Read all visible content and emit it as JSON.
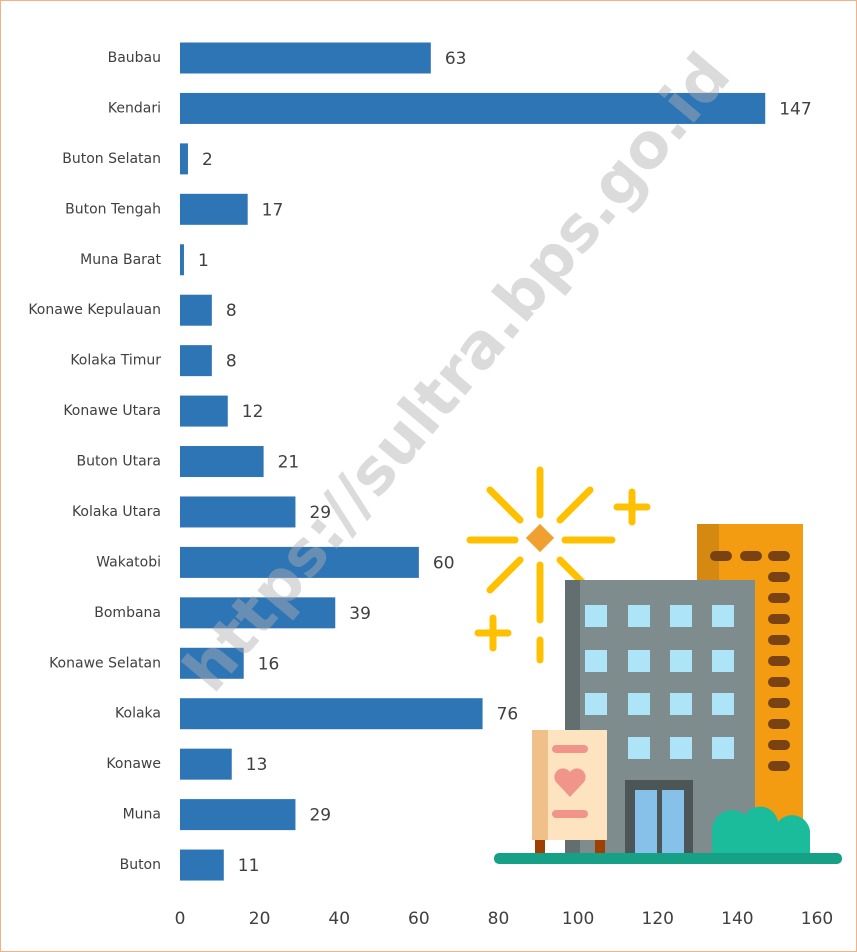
{
  "chart_data": {
    "type": "bar",
    "orientation": "horizontal",
    "color": "#2e75b6",
    "categories": [
      "Baubau",
      "Kendari",
      "Buton Selatan",
      "Buton Tengah",
      "Muna Barat",
      "Konawe Kepulauan",
      "Kolaka Timur",
      "Konawe Utara",
      "Buton Utara",
      "Kolaka Utara",
      "Wakatobi",
      "Bombana",
      "Konawe Selatan",
      "Kolaka",
      "Konawe",
      "Muna",
      "Buton"
    ],
    "values": [
      63,
      147,
      2,
      17,
      1,
      8,
      8,
      12,
      21,
      29,
      60,
      39,
      16,
      76,
      13,
      29,
      11
    ],
    "xlim": [
      0,
      160
    ],
    "xticks": [
      0,
      20,
      40,
      60,
      80,
      100,
      120,
      140,
      160
    ],
    "grid": false,
    "watermark": "https://sultra.bps.go.id"
  }
}
